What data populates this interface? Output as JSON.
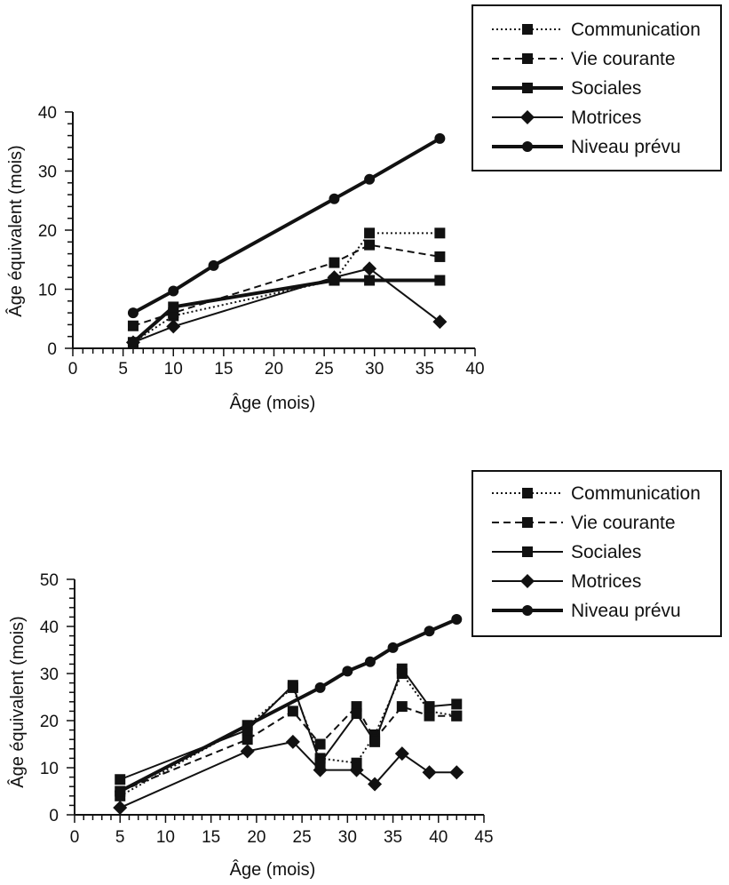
{
  "chart_data": [
    {
      "type": "line",
      "title": "",
      "xlabel": "Âge (mois)",
      "ylabel": "Âge équivalent (mois)",
      "xlim": [
        0,
        40
      ],
      "ylim": [
        0,
        40
      ],
      "x_ticks": [
        "0",
        "5",
        "10",
        "15",
        "20",
        "25",
        "30",
        "35",
        "40"
      ],
      "y_ticks": [
        "0",
        "10",
        "20",
        "30",
        "40"
      ],
      "grid": false,
      "legend_position": "top-right",
      "series": [
        {
          "name": "Communication",
          "style": "dotted",
          "marker": "square",
          "stroke_width": 2,
          "x": [
            6,
            10,
            26,
            29.5,
            36.5
          ],
          "y": [
            1,
            5.5,
            11.5,
            19.5,
            19.5
          ]
        },
        {
          "name": "Vie courante",
          "style": "dashed",
          "marker": "square",
          "stroke_width": 2,
          "x": [
            6,
            10,
            26,
            29.5,
            36.5
          ],
          "y": [
            3.8,
            6,
            14.5,
            17.5,
            15.5
          ]
        },
        {
          "name": "Sociales",
          "style": "solid",
          "marker": "square",
          "stroke_width": 4,
          "x": [
            6,
            10,
            26,
            29.5,
            36.5
          ],
          "y": [
            1,
            7,
            11.5,
            11.5,
            11.5
          ]
        },
        {
          "name": "Motrices",
          "style": "solid",
          "marker": "diamond",
          "stroke_width": 2,
          "x": [
            6,
            10,
            26,
            29.5,
            36.5
          ],
          "y": [
            1,
            3.7,
            12,
            13.5,
            4.5
          ]
        },
        {
          "name": "Niveau prévu",
          "style": "solid",
          "marker": "circle",
          "stroke_width": 4,
          "x": [
            6,
            10,
            14,
            26,
            29.5,
            36.5
          ],
          "y": [
            6,
            9.7,
            14,
            25.3,
            28.6,
            35.5
          ]
        }
      ]
    },
    {
      "type": "line",
      "title": "",
      "xlabel": "Âge (mois)",
      "ylabel": "Âge équivalent (mois)",
      "xlim": [
        0,
        45
      ],
      "ylim": [
        0,
        50
      ],
      "x_ticks": [
        "0",
        "5",
        "10",
        "15",
        "20",
        "25",
        "30",
        "35",
        "40",
        "45"
      ],
      "y_ticks": [
        "0",
        "10",
        "20",
        "30",
        "40",
        "50"
      ],
      "grid": false,
      "legend_position": "top-right",
      "series": [
        {
          "name": "Communication",
          "style": "dotted",
          "marker": "square",
          "stroke_width": 2,
          "x": [
            5,
            19,
            24,
            27,
            31,
            33,
            36,
            39,
            42
          ],
          "y": [
            4,
            19,
            27,
            12,
            11,
            17,
            30,
            22,
            21
          ]
        },
        {
          "name": "Vie courante",
          "style": "dashed",
          "marker": "square",
          "stroke_width": 2,
          "x": [
            5,
            19,
            24,
            27,
            31,
            33,
            36,
            39,
            42
          ],
          "y": [
            5,
            16,
            22,
            15,
            23,
            16,
            23,
            21,
            21
          ]
        },
        {
          "name": "Sociales",
          "style": "solid",
          "marker": "square",
          "stroke_width": 2,
          "x": [
            5,
            19,
            24,
            27,
            31,
            33,
            36,
            39,
            42
          ],
          "y": [
            7.5,
            18,
            27.5,
            11,
            21.5,
            15.5,
            31,
            23,
            23.5
          ]
        },
        {
          "name": "Motrices",
          "style": "solid",
          "marker": "diamond",
          "stroke_width": 2,
          "x": [
            5,
            19,
            24,
            27,
            31,
            33,
            36,
            39,
            42
          ],
          "y": [
            1.5,
            13.5,
            15.5,
            9.5,
            9.5,
            6.5,
            13,
            9,
            9
          ]
        },
        {
          "name": "Niveau prévu",
          "style": "solid",
          "marker": "circle",
          "stroke_width": 4,
          "x": [
            5,
            27,
            30,
            32.5,
            35,
            39,
            42
          ],
          "y": [
            5,
            27,
            30.5,
            32.5,
            35.5,
            39,
            41.5
          ]
        }
      ]
    }
  ]
}
